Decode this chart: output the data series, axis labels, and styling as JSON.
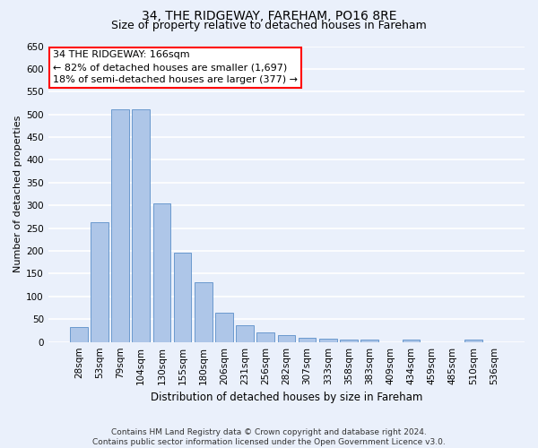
{
  "title1": "34, THE RIDGEWAY, FAREHAM, PO16 8RE",
  "title2": "Size of property relative to detached houses in Fareham",
  "xlabel": "Distribution of detached houses by size in Fareham",
  "ylabel": "Number of detached properties",
  "categories": [
    "28sqm",
    "53sqm",
    "79sqm",
    "104sqm",
    "130sqm",
    "155sqm",
    "180sqm",
    "206sqm",
    "231sqm",
    "256sqm",
    "282sqm",
    "307sqm",
    "333sqm",
    "358sqm",
    "383sqm",
    "409sqm",
    "434sqm",
    "459sqm",
    "485sqm",
    "510sqm",
    "536sqm"
  ],
  "values": [
    32,
    263,
    511,
    511,
    304,
    197,
    132,
    65,
    37,
    22,
    16,
    10,
    8,
    5,
    5,
    0,
    5,
    0,
    0,
    5,
    0
  ],
  "bar_color": "#aec6e8",
  "bar_edge_color": "#5b8fc9",
  "annotation_line1": "34 THE RIDGEWAY: 166sqm",
  "annotation_line2": "← 82% of detached houses are smaller (1,697)",
  "annotation_line3": "18% of semi-detached houses are larger (377) →",
  "annotation_box_color": "white",
  "annotation_box_edge_color": "red",
  "ylim": [
    0,
    650
  ],
  "yticks": [
    0,
    50,
    100,
    150,
    200,
    250,
    300,
    350,
    400,
    450,
    500,
    550,
    600,
    650
  ],
  "footnote": "Contains HM Land Registry data © Crown copyright and database right 2024.\nContains public sector information licensed under the Open Government Licence v3.0.",
  "bg_color": "#eaf0fb",
  "plot_bg_color": "#eaf0fb",
  "grid_color": "white",
  "title1_fontsize": 10,
  "title2_fontsize": 9,
  "xlabel_fontsize": 8.5,
  "ylabel_fontsize": 8,
  "tick_fontsize": 7.5,
  "annotation_fontsize": 8,
  "footnote_fontsize": 6.5
}
